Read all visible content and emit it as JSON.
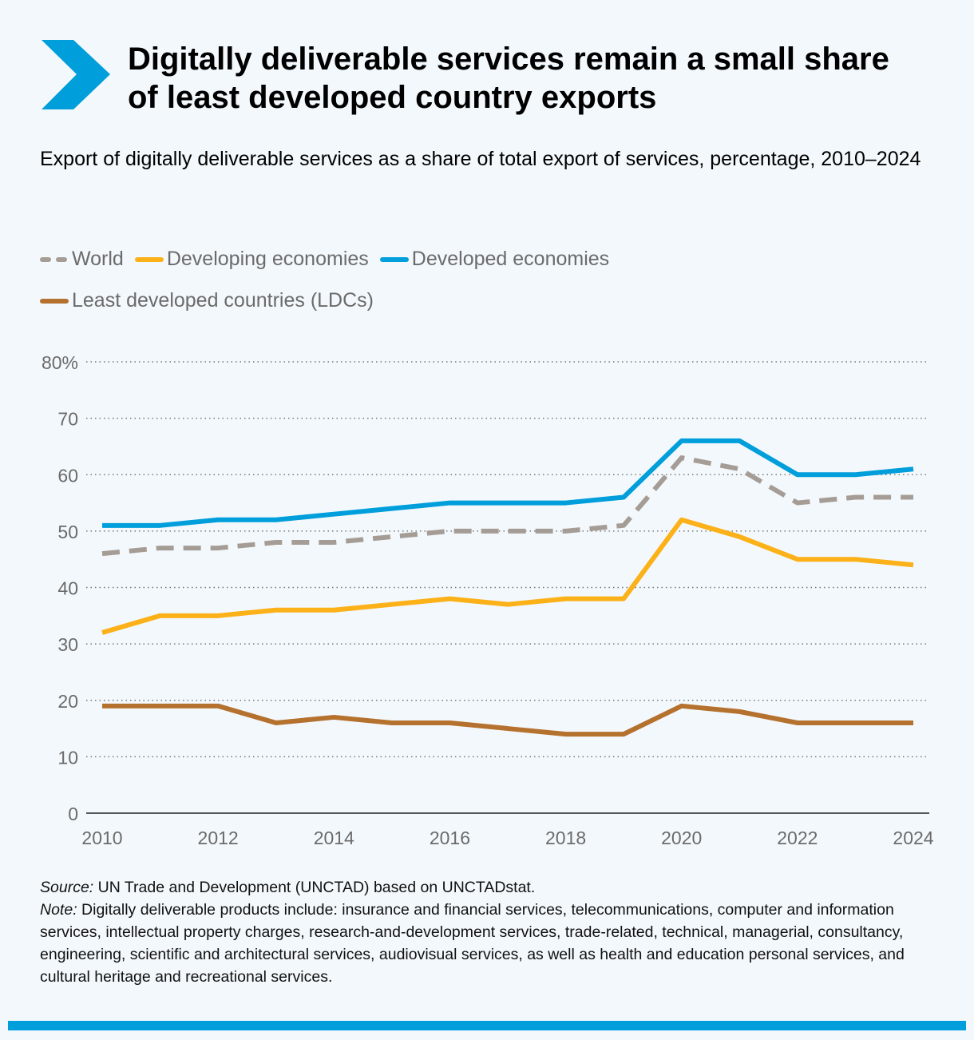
{
  "header": {
    "title": "Digitally deliverable services remain a small share of least developed country exports",
    "accent_color": "#009edb",
    "icon": "chevron-right-icon"
  },
  "chart_data": {
    "type": "line",
    "subtitle": "Export of digitally deliverable services as a share of total export of services, percentage, 2010–2024",
    "x": [
      2010,
      2011,
      2012,
      2013,
      2014,
      2015,
      2016,
      2017,
      2018,
      2019,
      2020,
      2021,
      2022,
      2023,
      2024
    ],
    "xticks": [
      "2010",
      "2012",
      "2014",
      "2016",
      "2018",
      "2020",
      "2022",
      "2024"
    ],
    "yticks": [
      "0",
      "10",
      "20",
      "30",
      "40",
      "50",
      "60",
      "70",
      "80%"
    ],
    "ylim": [
      0,
      80
    ],
    "grid": "horizontal dotted",
    "legend_placement": "top",
    "series": [
      {
        "name": "World",
        "color": "#a59d95",
        "dashed": true,
        "values": [
          46,
          47,
          47,
          48,
          48,
          49,
          50,
          50,
          50,
          51,
          63,
          61,
          55,
          56,
          56
        ]
      },
      {
        "name": "Developing economies",
        "color": "#fbb117",
        "values": [
          32,
          35,
          35,
          36,
          36,
          37,
          38,
          37,
          38,
          38,
          52,
          49,
          45,
          45,
          44
        ]
      },
      {
        "name": "Developed economies",
        "color": "#009edb",
        "values": [
          51,
          51,
          52,
          52,
          53,
          54,
          55,
          55,
          55,
          56,
          66,
          66,
          60,
          60,
          61
        ]
      },
      {
        "name": "Least developed countries (LDCs)",
        "color": "#b5712e",
        "values": [
          19,
          19,
          19,
          16,
          17,
          16,
          16,
          15,
          14,
          14,
          19,
          18,
          16,
          16,
          16
        ]
      }
    ]
  },
  "footer": {
    "source_label": "Source:",
    "source_text": " UN Trade and Development (UNCTAD) based on UNCTADstat.",
    "note_label": "Note:",
    "note_text": " Digitally deliverable products include: insurance and financial services, telecommunications, computer and information services, intellectual property charges, research-and-development services, trade-related, technical, managerial, consultancy, engineering, scientific and architectural services, audiovisual services, as well as health and education personal services, and cultural heritage and recreational services."
  }
}
